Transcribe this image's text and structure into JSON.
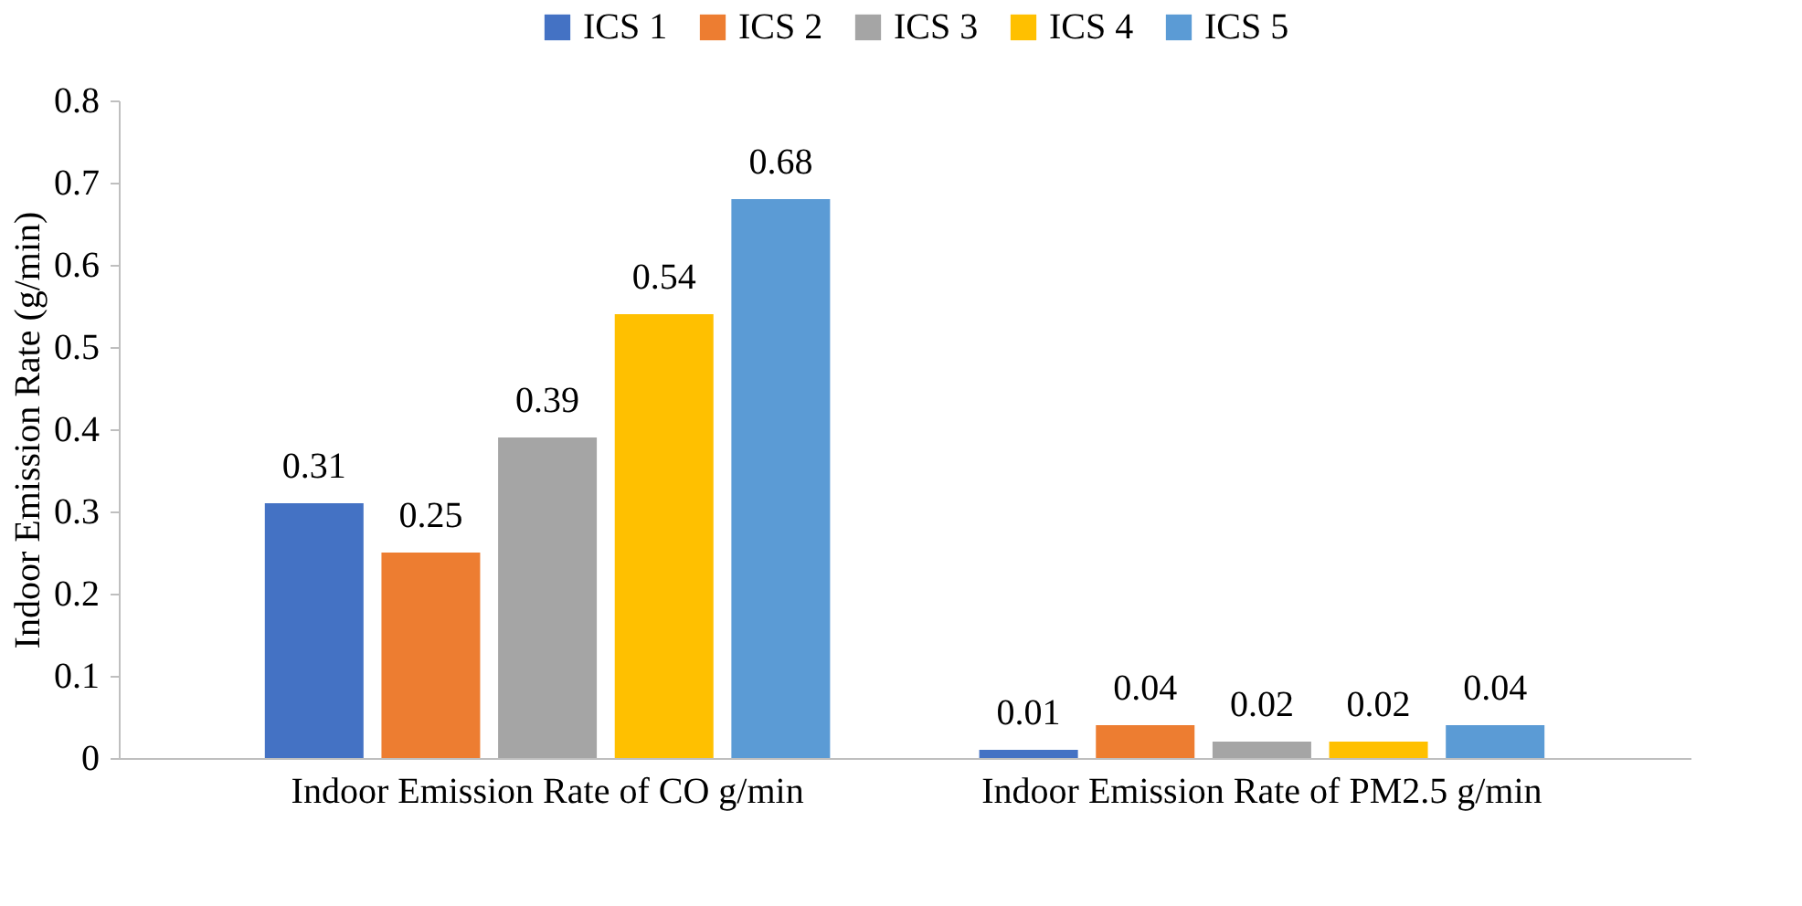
{
  "chart_data": {
    "type": "bar",
    "ylabel": "Indoor Emission Rate (g/min)",
    "categories": [
      "Indoor Emission Rate of CO g/min",
      "Indoor Emission Rate of PM2.5 g/min"
    ],
    "series": [
      {
        "name": "ICS 1",
        "color": "#4472c4",
        "values": [
          0.31,
          0.01
        ]
      },
      {
        "name": "ICS 2",
        "color": "#ed7d31",
        "values": [
          0.25,
          0.04
        ]
      },
      {
        "name": "ICS 3",
        "color": "#a5a5a5",
        "values": [
          0.39,
          0.02
        ]
      },
      {
        "name": "ICS 4",
        "color": "#ffc000",
        "values": [
          0.54,
          0.02
        ]
      },
      {
        "name": "ICS 5",
        "color": "#5b9bd5",
        "values": [
          0.68,
          0.04
        ]
      }
    ],
    "ylim": [
      0,
      0.8
    ],
    "yticks": [
      0,
      0.1,
      0.2,
      0.3,
      0.4,
      0.5,
      0.6,
      0.7,
      0.8
    ],
    "data_labels": true,
    "grid": false,
    "legend": "top"
  }
}
